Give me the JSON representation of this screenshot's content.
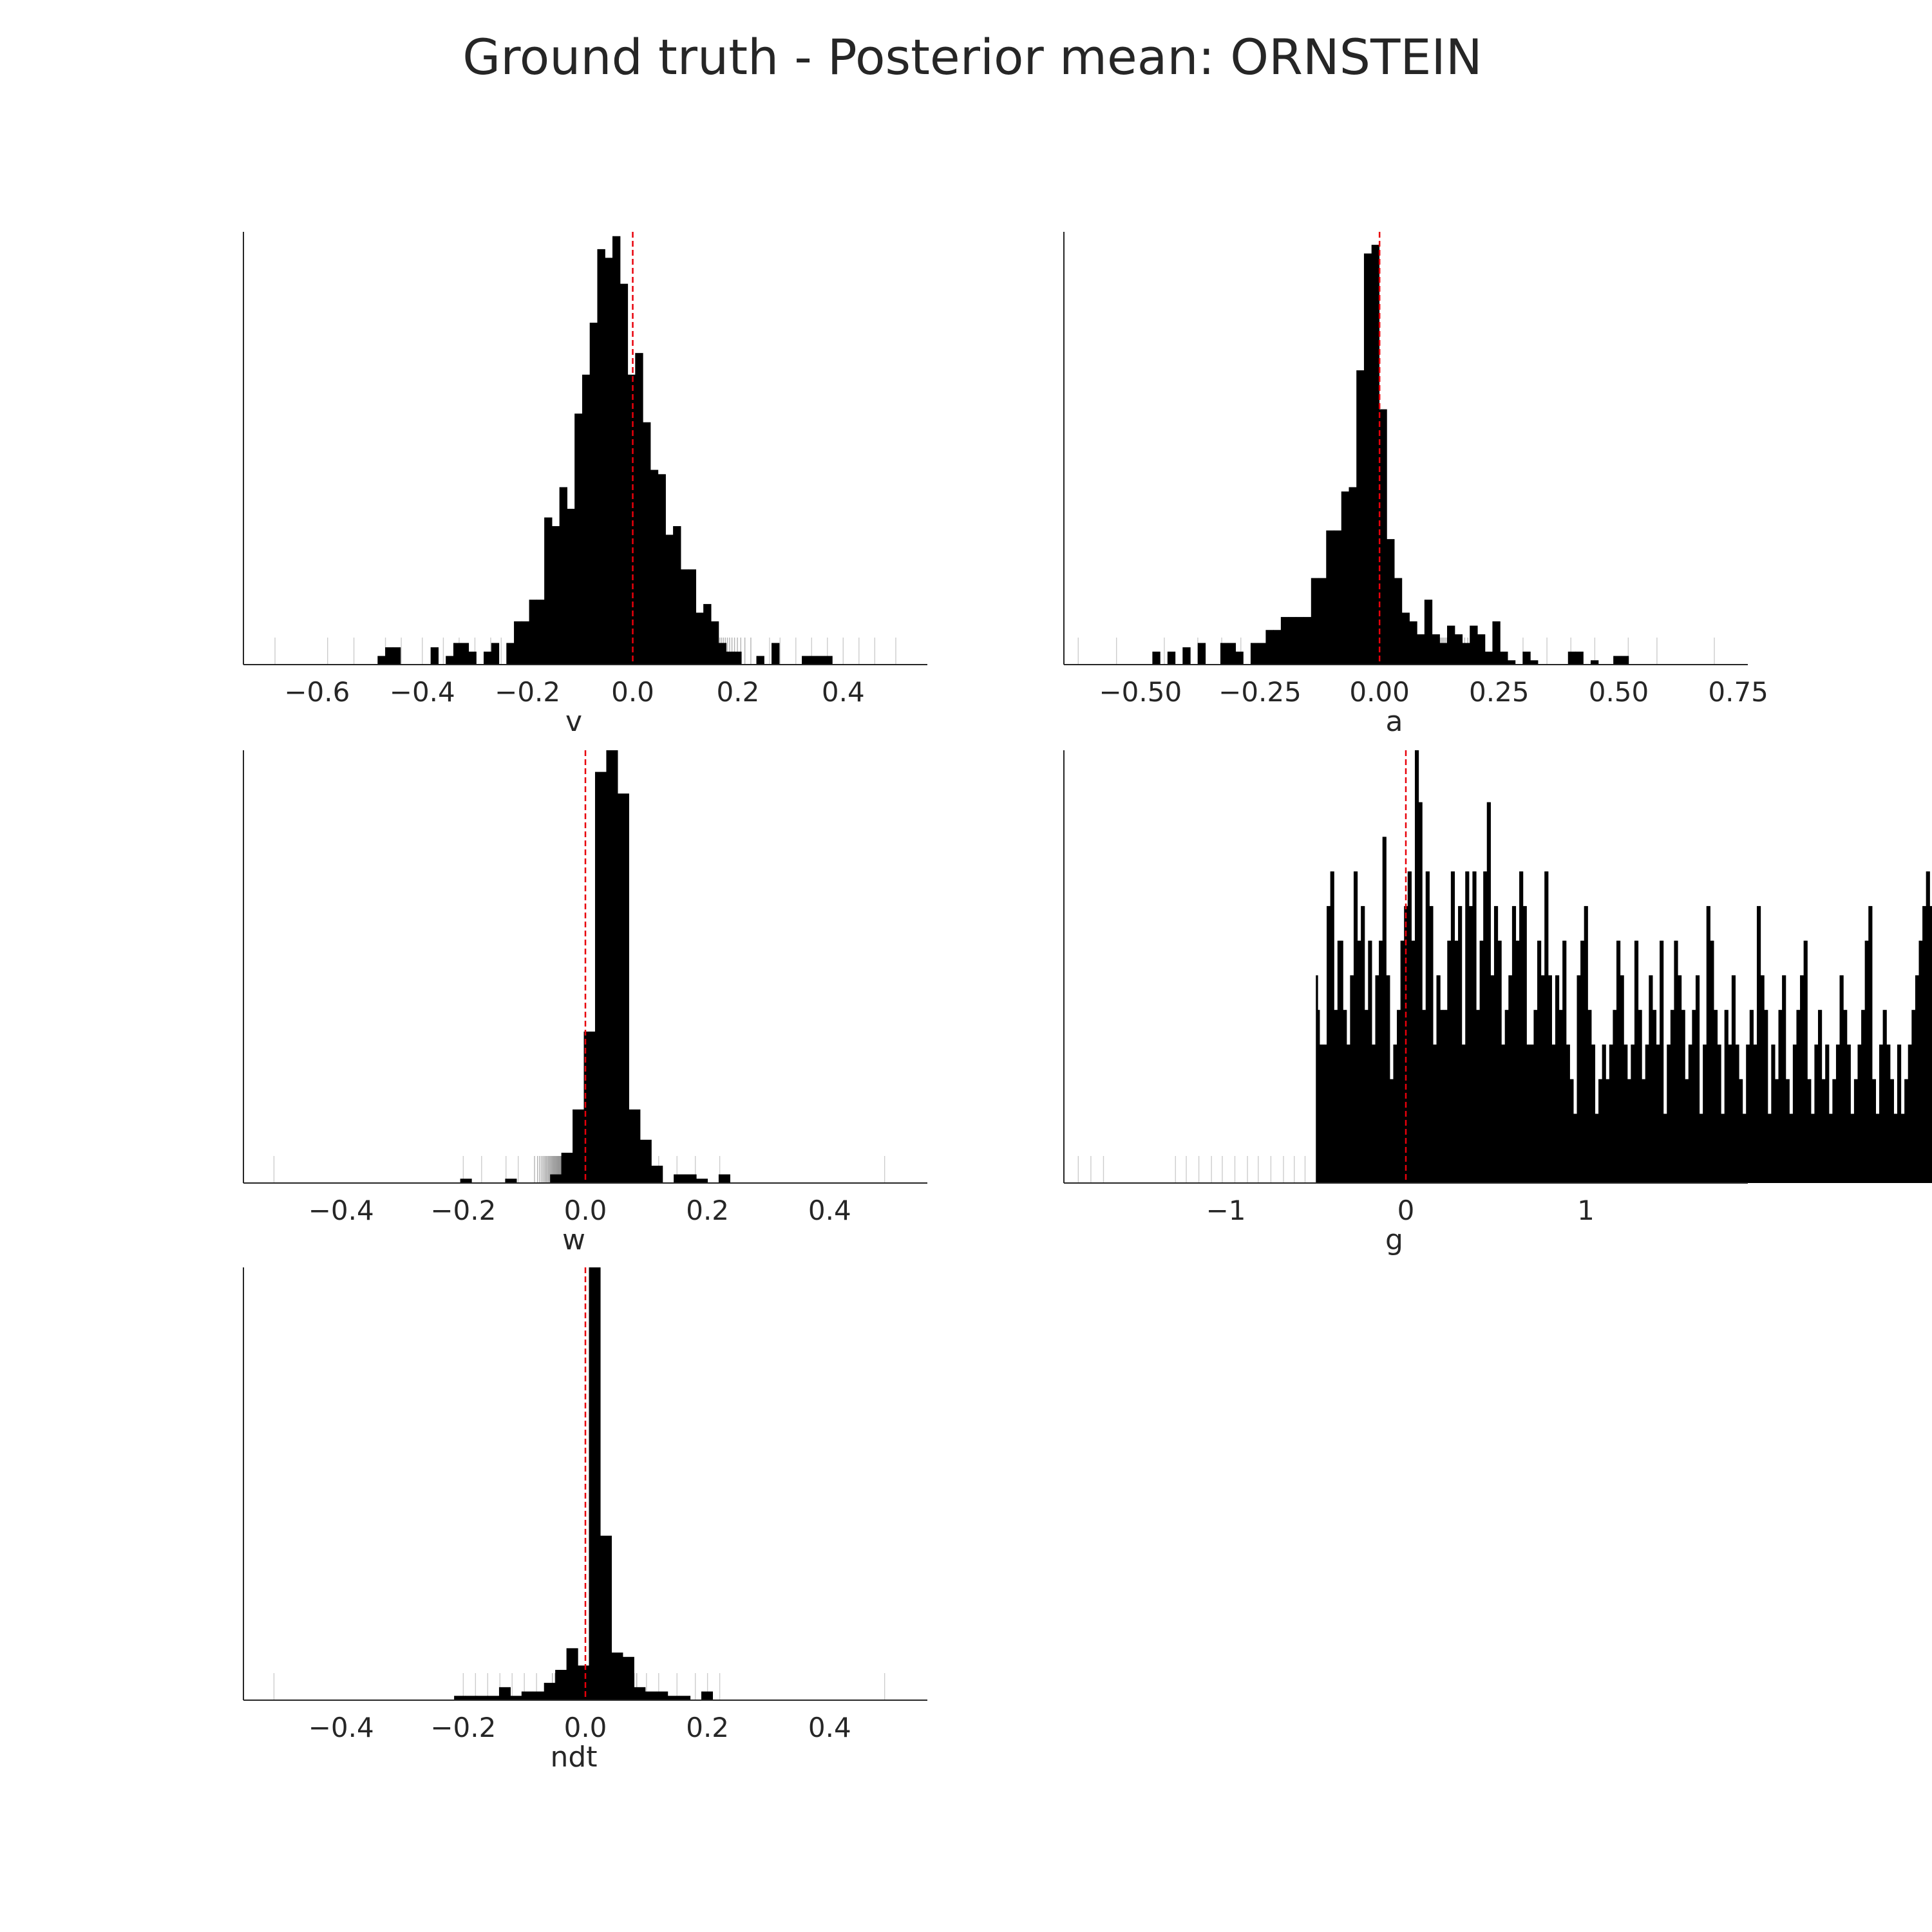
{
  "suptitle": "Ground truth - Posterior mean: ORNSTEIN",
  "colors": {
    "bars": "#000000",
    "rug": "#000000",
    "reference_line": "#e8000b",
    "axis": "#262626",
    "background": "#ffffff"
  },
  "chart_data": [
    {
      "type": "histogram",
      "xlabel": "v",
      "xlim": [
        -0.74,
        0.56
      ],
      "xticks": [
        -0.6,
        -0.4,
        -0.2,
        0.0,
        0.2,
        0.4
      ],
      "xtick_labels": [
        "−0.6",
        "−0.4",
        "−0.2",
        "0.0",
        "0.2",
        "0.4"
      ],
      "ylim": [
        0,
        100
      ],
      "bin_start": -0.485,
      "bin_width": 0.0144,
      "counts": [
        2,
        4,
        4,
        0,
        0,
        0,
        0,
        4,
        0,
        2,
        5,
        5,
        3,
        0,
        3,
        5,
        0,
        5,
        10,
        10,
        15,
        15,
        34,
        32,
        41,
        36,
        58,
        67,
        79,
        96,
        94,
        99,
        88,
        67,
        72,
        56,
        45,
        44,
        30,
        32,
        22,
        22,
        12,
        14,
        10,
        5,
        3,
        3,
        0,
        0,
        2,
        0,
        5,
        0,
        0,
        0,
        2,
        2,
        2,
        2
      ],
      "reference_line_x": 0.0,
      "rug": {
        "dense_range": [
          -0.22,
          0.24
        ],
        "dense_count": 220,
        "sparse": [
          -0.68,
          -0.58,
          -0.53,
          -0.47,
          -0.44,
          -0.4,
          -0.36,
          -0.33,
          -0.3,
          -0.27,
          -0.25,
          0.26,
          0.28,
          0.31,
          0.34,
          0.37,
          0.4,
          0.43,
          0.46,
          0.5
        ]
      },
      "grid": false
    },
    {
      "type": "histogram",
      "xlabel": "a",
      "xlim": [
        -0.66,
        0.77
      ],
      "xticks": [
        -0.5,
        -0.25,
        0.0,
        0.25,
        0.5,
        0.75
      ],
      "xtick_labels": [
        "−0.50",
        "−0.25",
        "0.00",
        "0.25",
        "0.50",
        "0.75"
      ],
      "ylim": [
        0,
        100
      ],
      "bin_start": -0.475,
      "bin_width": 0.0158,
      "counts": [
        3,
        0,
        3,
        0,
        4,
        0,
        5,
        0,
        0,
        5,
        5,
        3,
        0,
        5,
        5,
        8,
        8,
        11,
        11,
        11,
        11,
        20,
        20,
        31,
        31,
        40,
        41,
        68,
        95,
        97,
        59,
        29,
        20,
        12,
        10,
        7,
        15,
        7,
        5,
        9,
        7,
        5,
        9,
        7,
        3,
        10,
        3,
        1,
        0,
        3,
        1,
        0,
        0,
        0,
        0,
        3,
        3,
        0,
        1,
        0,
        0,
        2,
        2
      ],
      "reference_line_x": 0.0,
      "rug": {
        "dense_range": [
          -0.25,
          0.22
        ],
        "dense_count": 220,
        "sparse": [
          -0.63,
          -0.55,
          -0.45,
          -0.38,
          -0.33,
          -0.29,
          0.25,
          0.3,
          0.35,
          0.4,
          0.45,
          0.52,
          0.58,
          0.7
        ]
      },
      "grid": false
    },
    {
      "type": "histogram",
      "xlabel": "w",
      "xlim": [
        -0.56,
        0.56
      ],
      "xticks": [
        -0.4,
        -0.2,
        0.0,
        0.2,
        0.4
      ],
      "xtick_labels": [
        "−0.4",
        "−0.2",
        "0.0",
        "0.2",
        "0.4"
      ],
      "ylim": [
        0,
        100
      ],
      "bin_start": -0.205,
      "bin_width": 0.0184,
      "counts": [
        1,
        0,
        0,
        0,
        1,
        0,
        0,
        0,
        2,
        7,
        17,
        35,
        95,
        100,
        90,
        17,
        10,
        4,
        0,
        2,
        2,
        1,
        0,
        2,
        0
      ],
      "reference_line_x": 0.0,
      "rug": {
        "dense_range": [
          -0.09,
          0.09
        ],
        "dense_count": 180,
        "sparse": [
          -0.51,
          -0.2,
          -0.17,
          -0.13,
          -0.11,
          0.1,
          0.12,
          0.15,
          0.18,
          0.22,
          0.49
        ]
      },
      "grid": false
    },
    {
      "type": "histogram",
      "xlabel": "g",
      "xlim": [
        -1.9,
        1.9
      ],
      "xticks": [
        -1,
        0,
        1
      ],
      "xtick_labels": [
        "−1",
        "0",
        "1"
      ],
      "ylim": [
        0,
        100
      ],
      "bin_start": -0.5,
      "bin_width": 0.01,
      "counts": [
        48,
        40,
        32,
        32,
        32,
        32,
        64,
        64,
        72,
        72,
        40,
        40,
        56,
        56,
        56,
        40,
        40,
        32,
        32,
        48,
        48,
        72,
        72,
        56,
        56,
        64,
        64,
        40,
        40,
        56,
        56,
        32,
        32,
        48,
        48,
        56,
        56,
        80,
        80,
        48,
        48,
        24,
        24,
        32,
        32,
        40,
        40,
        56,
        56,
        64,
        64,
        72,
        72,
        56,
        56,
        100,
        100,
        88,
        88,
        40,
        40,
        72,
        72,
        64,
        64,
        32,
        32,
        48,
        48,
        40,
        40,
        40,
        40,
        56,
        56,
        72,
        72,
        56,
        56,
        64,
        64,
        32,
        32,
        72,
        72,
        64,
        64,
        72,
        72,
        40,
        40,
        56,
        56,
        72,
        72,
        88,
        88,
        48,
        48,
        64,
        64,
        56,
        56,
        32,
        32,
        40,
        40,
        48,
        48,
        64,
        64,
        56,
        56,
        72,
        72,
        64,
        64,
        32,
        32,
        32,
        32,
        40,
        40,
        56,
        56,
        48,
        48,
        72,
        72,
        48,
        48,
        32,
        32,
        48,
        48,
        40,
        40,
        56,
        56,
        32,
        32,
        24,
        24,
        16,
        16,
        48,
        48,
        56,
        56,
        64,
        64,
        40,
        40,
        32,
        32,
        16,
        16,
        24,
        24,
        32,
        32,
        24,
        24,
        32,
        32,
        40,
        40,
        56,
        56,
        48,
        48,
        32,
        32,
        24,
        24,
        32,
        32,
        56,
        56,
        40,
        40,
        24,
        24,
        32,
        32,
        48,
        48,
        40,
        40,
        32,
        32,
        56,
        56,
        16,
        16,
        32,
        32,
        40,
        40,
        56,
        56,
        48,
        48,
        40,
        40,
        24,
        24,
        32,
        32,
        40,
        40,
        48,
        48,
        16,
        16,
        32,
        32,
        64,
        64,
        56,
        56,
        40,
        40,
        32,
        32,
        16,
        16,
        40,
        40,
        32,
        32,
        48,
        48,
        32,
        32,
        24,
        24,
        16,
        16,
        32,
        32,
        40,
        40,
        32,
        32,
        64,
        64,
        48,
        48,
        40,
        40,
        16,
        16,
        32,
        32,
        24,
        24,
        40,
        40,
        48,
        48,
        24,
        24,
        16,
        16,
        32,
        32,
        40,
        40,
        48,
        48,
        56,
        56,
        24,
        24,
        16,
        16,
        32,
        32,
        40,
        40,
        24,
        24,
        32,
        32,
        16,
        16,
        24,
        24,
        32,
        32,
        48,
        48,
        40,
        40,
        32,
        32,
        16,
        16,
        24,
        24,
        32,
        32,
        40,
        40,
        56,
        56,
        64,
        64,
        24,
        24,
        16,
        16,
        32,
        32,
        40,
        40,
        32,
        32,
        24,
        24,
        16,
        16,
        32,
        32,
        16,
        16,
        24,
        24,
        32,
        32,
        40,
        40,
        48,
        48,
        56,
        56,
        64,
        64,
        72,
        72,
        64,
        64,
        48,
        48,
        32,
        32,
        24,
        24,
        16,
        16,
        24,
        24,
        40,
        40,
        48,
        48,
        64,
        64,
        56,
        56,
        32,
        32,
        16,
        16,
        24,
        24,
        32,
        32,
        48,
        48,
        40,
        40,
        56,
        56,
        64,
        64,
        72,
        72,
        48,
        48,
        32,
        32,
        24,
        24,
        32,
        32,
        40,
        40,
        48,
        48,
        56,
        56,
        40,
        40,
        24,
        24,
        32,
        32,
        40,
        40,
        56,
        56,
        64,
        64,
        72,
        72,
        56,
        56,
        40,
        40,
        32,
        32,
        24,
        24,
        32,
        32,
        48,
        48,
        56,
        56,
        64,
        64,
        72,
        72,
        48,
        48,
        40,
        40,
        32,
        32,
        24,
        24,
        32,
        32,
        40,
        40,
        48,
        48,
        56,
        56,
        64,
        64,
        72,
        72,
        80,
        80,
        56,
        56,
        48,
        48,
        40,
        40,
        32,
        32,
        40,
        40,
        48,
        48,
        56,
        56,
        64,
        64,
        72,
        72,
        40,
        40,
        32,
        32,
        24,
        24,
        32,
        32,
        40,
        40,
        48,
        48,
        56,
        56,
        64,
        64,
        72,
        72,
        56,
        56,
        48,
        48,
        40,
        40,
        32,
        32,
        24,
        24,
        32,
        32,
        40,
        40,
        48,
        48,
        56,
        56,
        64,
        64,
        72,
        72,
        64,
        64,
        48,
        48,
        32,
        32,
        24,
        24,
        32,
        32,
        40,
        40,
        48,
        48,
        56,
        56,
        64,
        64,
        72,
        72,
        40,
        40,
        24,
        24,
        32,
        32,
        40,
        40,
        48,
        48,
        56,
        56,
        64,
        64,
        24,
        24,
        24,
        24,
        24,
        24,
        32,
        32,
        40,
        40,
        48,
        48,
        56,
        56,
        64,
        64,
        72,
        72,
        24,
        24,
        24,
        24,
        24,
        24,
        24,
        24,
        24,
        24,
        24,
        24,
        24,
        24,
        24,
        24,
        24,
        24,
        24,
        24,
        24,
        24,
        24,
        24,
        24,
        24,
        24,
        24,
        24,
        24,
        24,
        24,
        24,
        24,
        24,
        24,
        24,
        24,
        24,
        24,
        24,
        24,
        24,
        24,
        24,
        24,
        24,
        24,
        24,
        24,
        24,
        24,
        24,
        24,
        24,
        24
      ],
      "reference_line_x": 0.0,
      "rug": {
        "dense_range": [
          -0.5,
          0.5
        ],
        "dense_count": 260,
        "sparse": [
          -1.82,
          -1.75,
          -1.68,
          -1.28,
          -1.22,
          -1.15,
          -1.08,
          -1.02,
          -0.95,
          -0.88,
          -0.82,
          -0.75,
          -0.68,
          -0.62,
          -0.56,
          0.55,
          0.6,
          0.66,
          0.72,
          0.78,
          0.84,
          0.9,
          0.96,
          1.02,
          1.08,
          1.14,
          1.2,
          1.28,
          1.36,
          1.62
        ]
      },
      "grid": false
    },
    {
      "type": "histogram",
      "xlabel": "ndt",
      "xlim": [
        -0.56,
        0.56
      ],
      "xticks": [
        -0.4,
        -0.2,
        0.0,
        0.2,
        0.4
      ],
      "xtick_labels": [
        "−0.4",
        "−0.2",
        "0.0",
        "0.2",
        "0.4"
      ],
      "ylim": [
        0,
        100
      ],
      "bin_start": -0.215,
      "bin_width": 0.0184,
      "counts": [
        1,
        1,
        1,
        1,
        3,
        1,
        2,
        2,
        4,
        7,
        12,
        8,
        100,
        38,
        11,
        10,
        3,
        2,
        2,
        1,
        1,
        0,
        2
      ],
      "reference_line_x": 0.0,
      "rug": {
        "dense_range": [
          -0.06,
          0.09
        ],
        "dense_count": 160,
        "sparse": [
          -0.51,
          -0.2,
          -0.18,
          -0.16,
          -0.14,
          -0.12,
          -0.1,
          -0.08,
          0.1,
          0.12,
          0.15,
          0.18,
          0.2,
          0.22,
          0.49
        ]
      },
      "grid": false
    }
  ]
}
